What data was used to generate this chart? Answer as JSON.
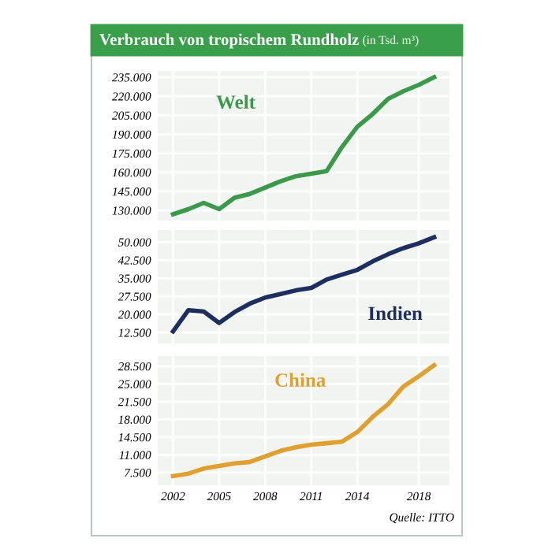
{
  "chart_data": [
    {
      "type": "line",
      "title": "Verbrauch von tropischem Rundholz",
      "subtitle": "(in Tsd. m³)",
      "x": [
        2002,
        2003,
        2004,
        2005,
        2006,
        2007,
        2008,
        2009,
        2010,
        2011,
        2012,
        2013,
        2014,
        2015,
        2016,
        2017,
        2018,
        2019
      ],
      "series": [
        {
          "name": "Welt",
          "color": "#3a9a4a",
          "values": [
            127000,
            131000,
            136000,
            131000,
            140000,
            143000,
            148000,
            153000,
            157000,
            159000,
            161000,
            180000,
            196000,
            206000,
            218000,
            224000,
            229000,
            235000
          ]
        }
      ],
      "xlim": [
        2001,
        2020
      ],
      "xticks": [
        2002,
        2005,
        2008,
        2011,
        2014,
        2018
      ],
      "ylim": [
        122000,
        240000
      ],
      "yticks": [
        {
          "value": 130000,
          "label": "130.000"
        },
        {
          "value": 145000,
          "label": "145.000"
        },
        {
          "value": 160000,
          "label": "160.000"
        },
        {
          "value": 175000,
          "label": "175.000"
        },
        {
          "value": 190000,
          "label": "190.000"
        },
        {
          "value": 205000,
          "label": "205.000"
        },
        {
          "value": 220000,
          "label": "220.000"
        },
        {
          "value": 235000,
          "label": "235.000"
        }
      ],
      "grid": true,
      "tick_labels": "y"
    },
    {
      "type": "line",
      "x": [
        2002,
        2003,
        2004,
        2005,
        2006,
        2007,
        2008,
        2009,
        2010,
        2011,
        2012,
        2013,
        2014,
        2015,
        2016,
        2017,
        2018,
        2019
      ],
      "series": [
        {
          "name": "Indien",
          "color": "#1c2f5e",
          "values": [
            13000,
            21800,
            21200,
            16500,
            21000,
            24500,
            27000,
            28500,
            30000,
            31000,
            34500,
            36500,
            38500,
            42000,
            45000,
            47500,
            49500,
            52000
          ]
        }
      ],
      "xlim": [
        2001,
        2020
      ],
      "xticks": [
        2002,
        2005,
        2008,
        2011,
        2014,
        2018
      ],
      "ylim": [
        8000,
        55000
      ],
      "yticks": [
        {
          "value": 12500,
          "label": "12.500"
        },
        {
          "value": 20000,
          "label": "20.000"
        },
        {
          "value": 27500,
          "label": "27.500"
        },
        {
          "value": 35000,
          "label": "35.000"
        },
        {
          "value": 42500,
          "label": "42.500"
        },
        {
          "value": 50000,
          "label": "50.000"
        }
      ],
      "grid": true,
      "tick_labels": "y"
    },
    {
      "type": "line",
      "x": [
        2002,
        2003,
        2004,
        2005,
        2006,
        2007,
        2008,
        2009,
        2010,
        2011,
        2012,
        2013,
        2014,
        2015,
        2016,
        2017,
        2018,
        2019
      ],
      "series": [
        {
          "name": "China",
          "color": "#e0a030",
          "values": [
            6800,
            7300,
            8300,
            8800,
            9300,
            9600,
            10700,
            11800,
            12500,
            13000,
            13300,
            13600,
            15500,
            18500,
            21000,
            24500,
            26500,
            28700
          ]
        }
      ],
      "xlim": [
        2001,
        2020
      ],
      "xticks": [
        2002,
        2005,
        2008,
        2011,
        2014,
        2018
      ],
      "ylim": [
        5000,
        30500
      ],
      "yticks": [
        {
          "value": 7500,
          "label": "7.500"
        },
        {
          "value": 11000,
          "label": "11.000"
        },
        {
          "value": 14500,
          "label": "14.500"
        },
        {
          "value": 18000,
          "label": "18.000"
        },
        {
          "value": 21500,
          "label": "21.500"
        },
        {
          "value": 25000,
          "label": "25.000"
        },
        {
          "value": 28500,
          "label": "28.500"
        }
      ],
      "grid": true,
      "annotations": [
        "Quelle: ITTO"
      ]
    }
  ]
}
